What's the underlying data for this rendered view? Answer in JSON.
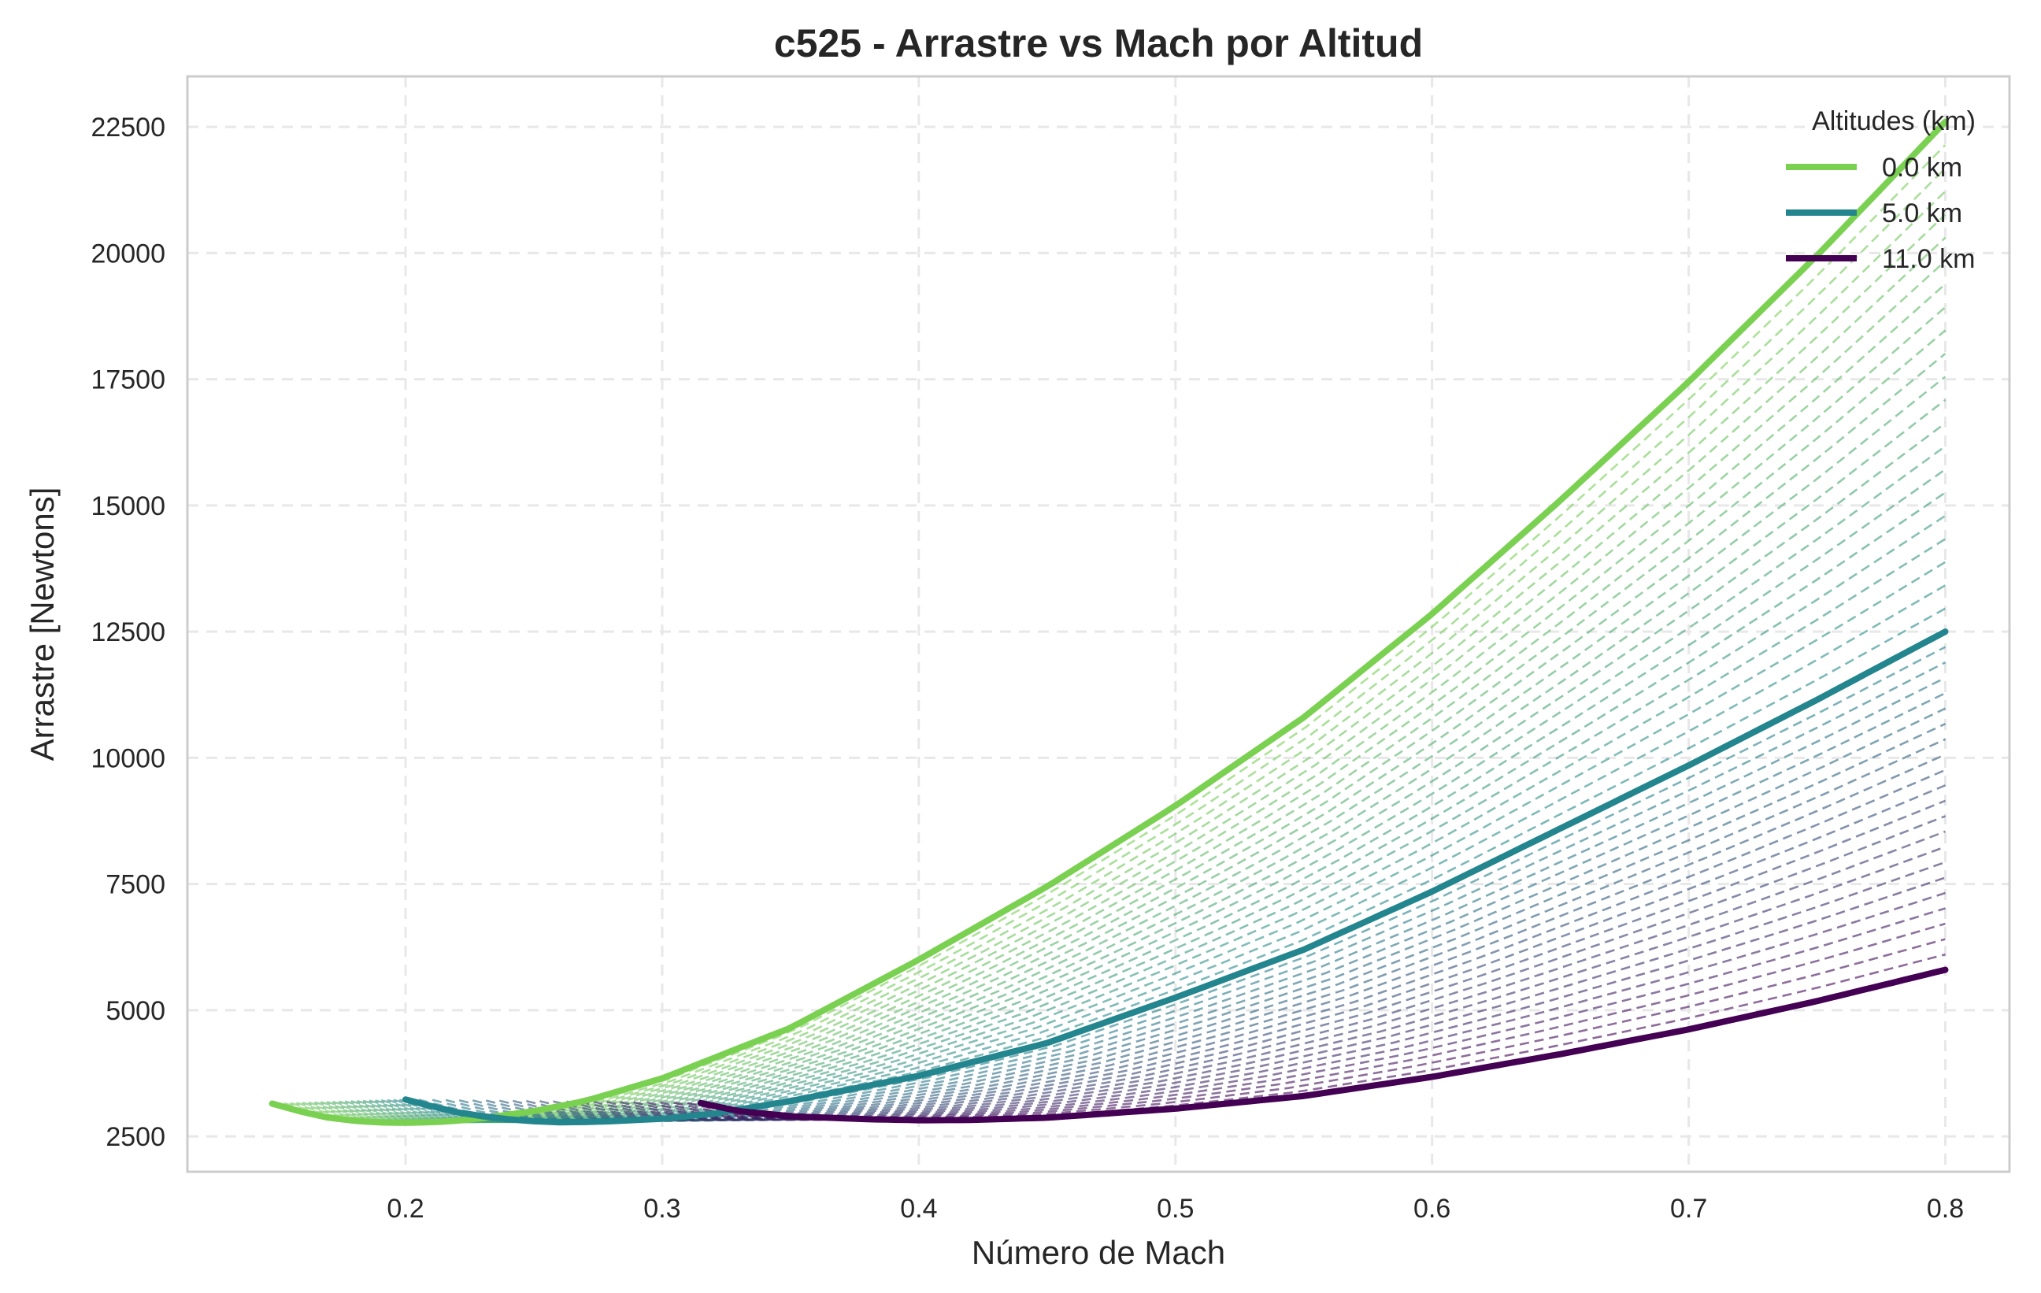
{
  "chart_data": {
    "type": "line",
    "title": "c525 - Arrastre vs Mach por Altitud",
    "xlabel": "Número de Mach",
    "ylabel": "Arrastre [Newtons]",
    "xlim": [
      0.115,
      0.825
    ],
    "ylim": [
      1800,
      23500
    ],
    "xticks": [
      0.2,
      0.3,
      0.4,
      0.5,
      0.6,
      0.7,
      0.8
    ],
    "xtick_labels": [
      "0.2",
      "0.3",
      "0.4",
      "0.5",
      "0.6",
      "0.7",
      "0.8"
    ],
    "yticks": [
      2500,
      5000,
      7500,
      10000,
      12500,
      15000,
      17500,
      20000,
      22500
    ],
    "ytick_labels": [
      "2500",
      "5000",
      "7500",
      "10000",
      "12500",
      "15000",
      "17500",
      "20000",
      "22500"
    ],
    "grid": true,
    "legend": {
      "title": "Altitudes (km)",
      "placement": "top-right",
      "entries": [
        "0.0 km",
        "5.0 km",
        "11.0 km"
      ]
    },
    "series": [
      {
        "name": "0.0 km",
        "color": "#7ad151",
        "style": "solid",
        "x": [
          0.148,
          0.16,
          0.17,
          0.18,
          0.19,
          0.2,
          0.21,
          0.22,
          0.23,
          0.25,
          0.27,
          0.3,
          0.35,
          0.4,
          0.45,
          0.5,
          0.55,
          0.6,
          0.65,
          0.7,
          0.75,
          0.8
        ],
        "y": [
          3150,
          2980,
          2870,
          2810,
          2775,
          2770,
          2780,
          2810,
          2860,
          3000,
          3200,
          3650,
          4650,
          6000,
          7450,
          9050,
          10800,
          12850,
          15100,
          17450,
          19950,
          22600
        ]
      },
      {
        "name": "5.0 km",
        "color": "#23858e",
        "style": "solid",
        "x": [
          0.2,
          0.21,
          0.22,
          0.23,
          0.24,
          0.25,
          0.26,
          0.27,
          0.28,
          0.3,
          0.32,
          0.35,
          0.4,
          0.45,
          0.5,
          0.55,
          0.6,
          0.65,
          0.7,
          0.75,
          0.8
        ],
        "y": [
          3230,
          3100,
          2980,
          2900,
          2840,
          2800,
          2780,
          2785,
          2800,
          2850,
          2950,
          3200,
          3700,
          4350,
          5250,
          6200,
          7350,
          8600,
          9850,
          11150,
          12500
        ]
      },
      {
        "name": "11.0 km",
        "color": "#440154",
        "style": "solid",
        "x": [
          0.315,
          0.33,
          0.35,
          0.38,
          0.4,
          0.42,
          0.45,
          0.5,
          0.55,
          0.6,
          0.65,
          0.7,
          0.75,
          0.8
        ],
        "y": [
          3160,
          3000,
          2900,
          2840,
          2820,
          2825,
          2870,
          3050,
          3300,
          3680,
          4130,
          4620,
          5180,
          5800
        ]
      }
    ],
    "intermediate_series": {
      "style": "dashed",
      "count": 44,
      "x_range": [
        0.15,
        0.8
      ],
      "description_colors": [
        "#7ad151",
        "#23858e",
        "#440154"
      ]
    }
  }
}
